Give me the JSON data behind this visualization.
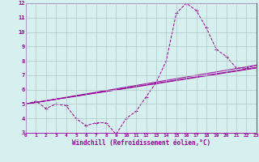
{
  "xlabel": "Windchill (Refroidissement éolien,°C)",
  "background_color": "#d5f0ee",
  "grid_color": "#b0c8c8",
  "line_color": "#990099",
  "xlim": [
    0,
    23
  ],
  "ylim": [
    3,
    12
  ],
  "yticks": [
    3,
    4,
    5,
    6,
    7,
    8,
    9,
    10,
    11,
    12
  ],
  "xticks": [
    0,
    1,
    2,
    3,
    4,
    5,
    6,
    7,
    8,
    9,
    10,
    11,
    12,
    13,
    14,
    15,
    16,
    17,
    18,
    19,
    20,
    21,
    22,
    23
  ],
  "main_series": {
    "x": [
      0,
      1,
      2,
      3,
      4,
      5,
      6,
      7,
      8,
      9,
      10,
      11,
      12,
      13,
      14,
      15,
      16,
      17,
      18,
      19,
      20,
      21,
      22,
      23
    ],
    "y": [
      5.0,
      5.2,
      4.7,
      5.0,
      4.9,
      4.0,
      3.5,
      3.7,
      3.7,
      2.9,
      4.0,
      4.5,
      5.5,
      6.5,
      8.0,
      11.3,
      12.0,
      11.5,
      10.3,
      8.8,
      8.3,
      7.5,
      7.5,
      7.7
    ]
  },
  "trend_lines": [
    {
      "x": [
        0,
        23
      ],
      "y": [
        5.0,
        7.7
      ]
    },
    {
      "x": [
        0,
        23
      ],
      "y": [
        5.0,
        7.5
      ]
    },
    {
      "x": [
        0,
        23
      ],
      "y": [
        5.0,
        7.55
      ]
    }
  ]
}
